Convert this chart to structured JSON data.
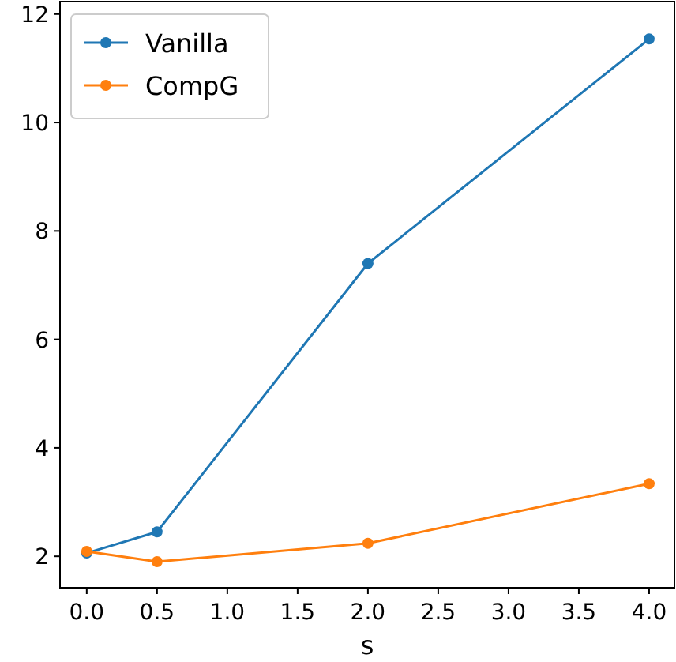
{
  "chart_data": {
    "type": "line",
    "xlabel": "s",
    "x": [
      0,
      0.5,
      2,
      4
    ],
    "series": [
      {
        "name": "Vanilla",
        "color": "#1f77b4",
        "values": [
          2.06,
          2.45,
          7.4,
          11.54
        ]
      },
      {
        "name": "CompG",
        "color": "#ff7f0e",
        "values": [
          2.09,
          1.9,
          2.24,
          3.34
        ]
      }
    ],
    "xlim": [
      -0.19,
      4.18
    ],
    "ylim": [
      1.42,
      12.23
    ],
    "xticks": [
      {
        "value": 0,
        "label": "0.0"
      },
      {
        "value": 0.5,
        "label": "0.5"
      },
      {
        "value": 1,
        "label": "1.0"
      },
      {
        "value": 1.5,
        "label": "1.5"
      },
      {
        "value": 2,
        "label": "2.0"
      },
      {
        "value": 2.5,
        "label": "2.5"
      },
      {
        "value": 3,
        "label": "3.0"
      },
      {
        "value": 3.5,
        "label": "3.5"
      },
      {
        "value": 4,
        "label": "4.0"
      }
    ],
    "yticks": [
      2,
      4,
      6,
      8,
      10,
      12
    ],
    "legend": "top left",
    "marker": "circle",
    "line_style": "solid"
  }
}
